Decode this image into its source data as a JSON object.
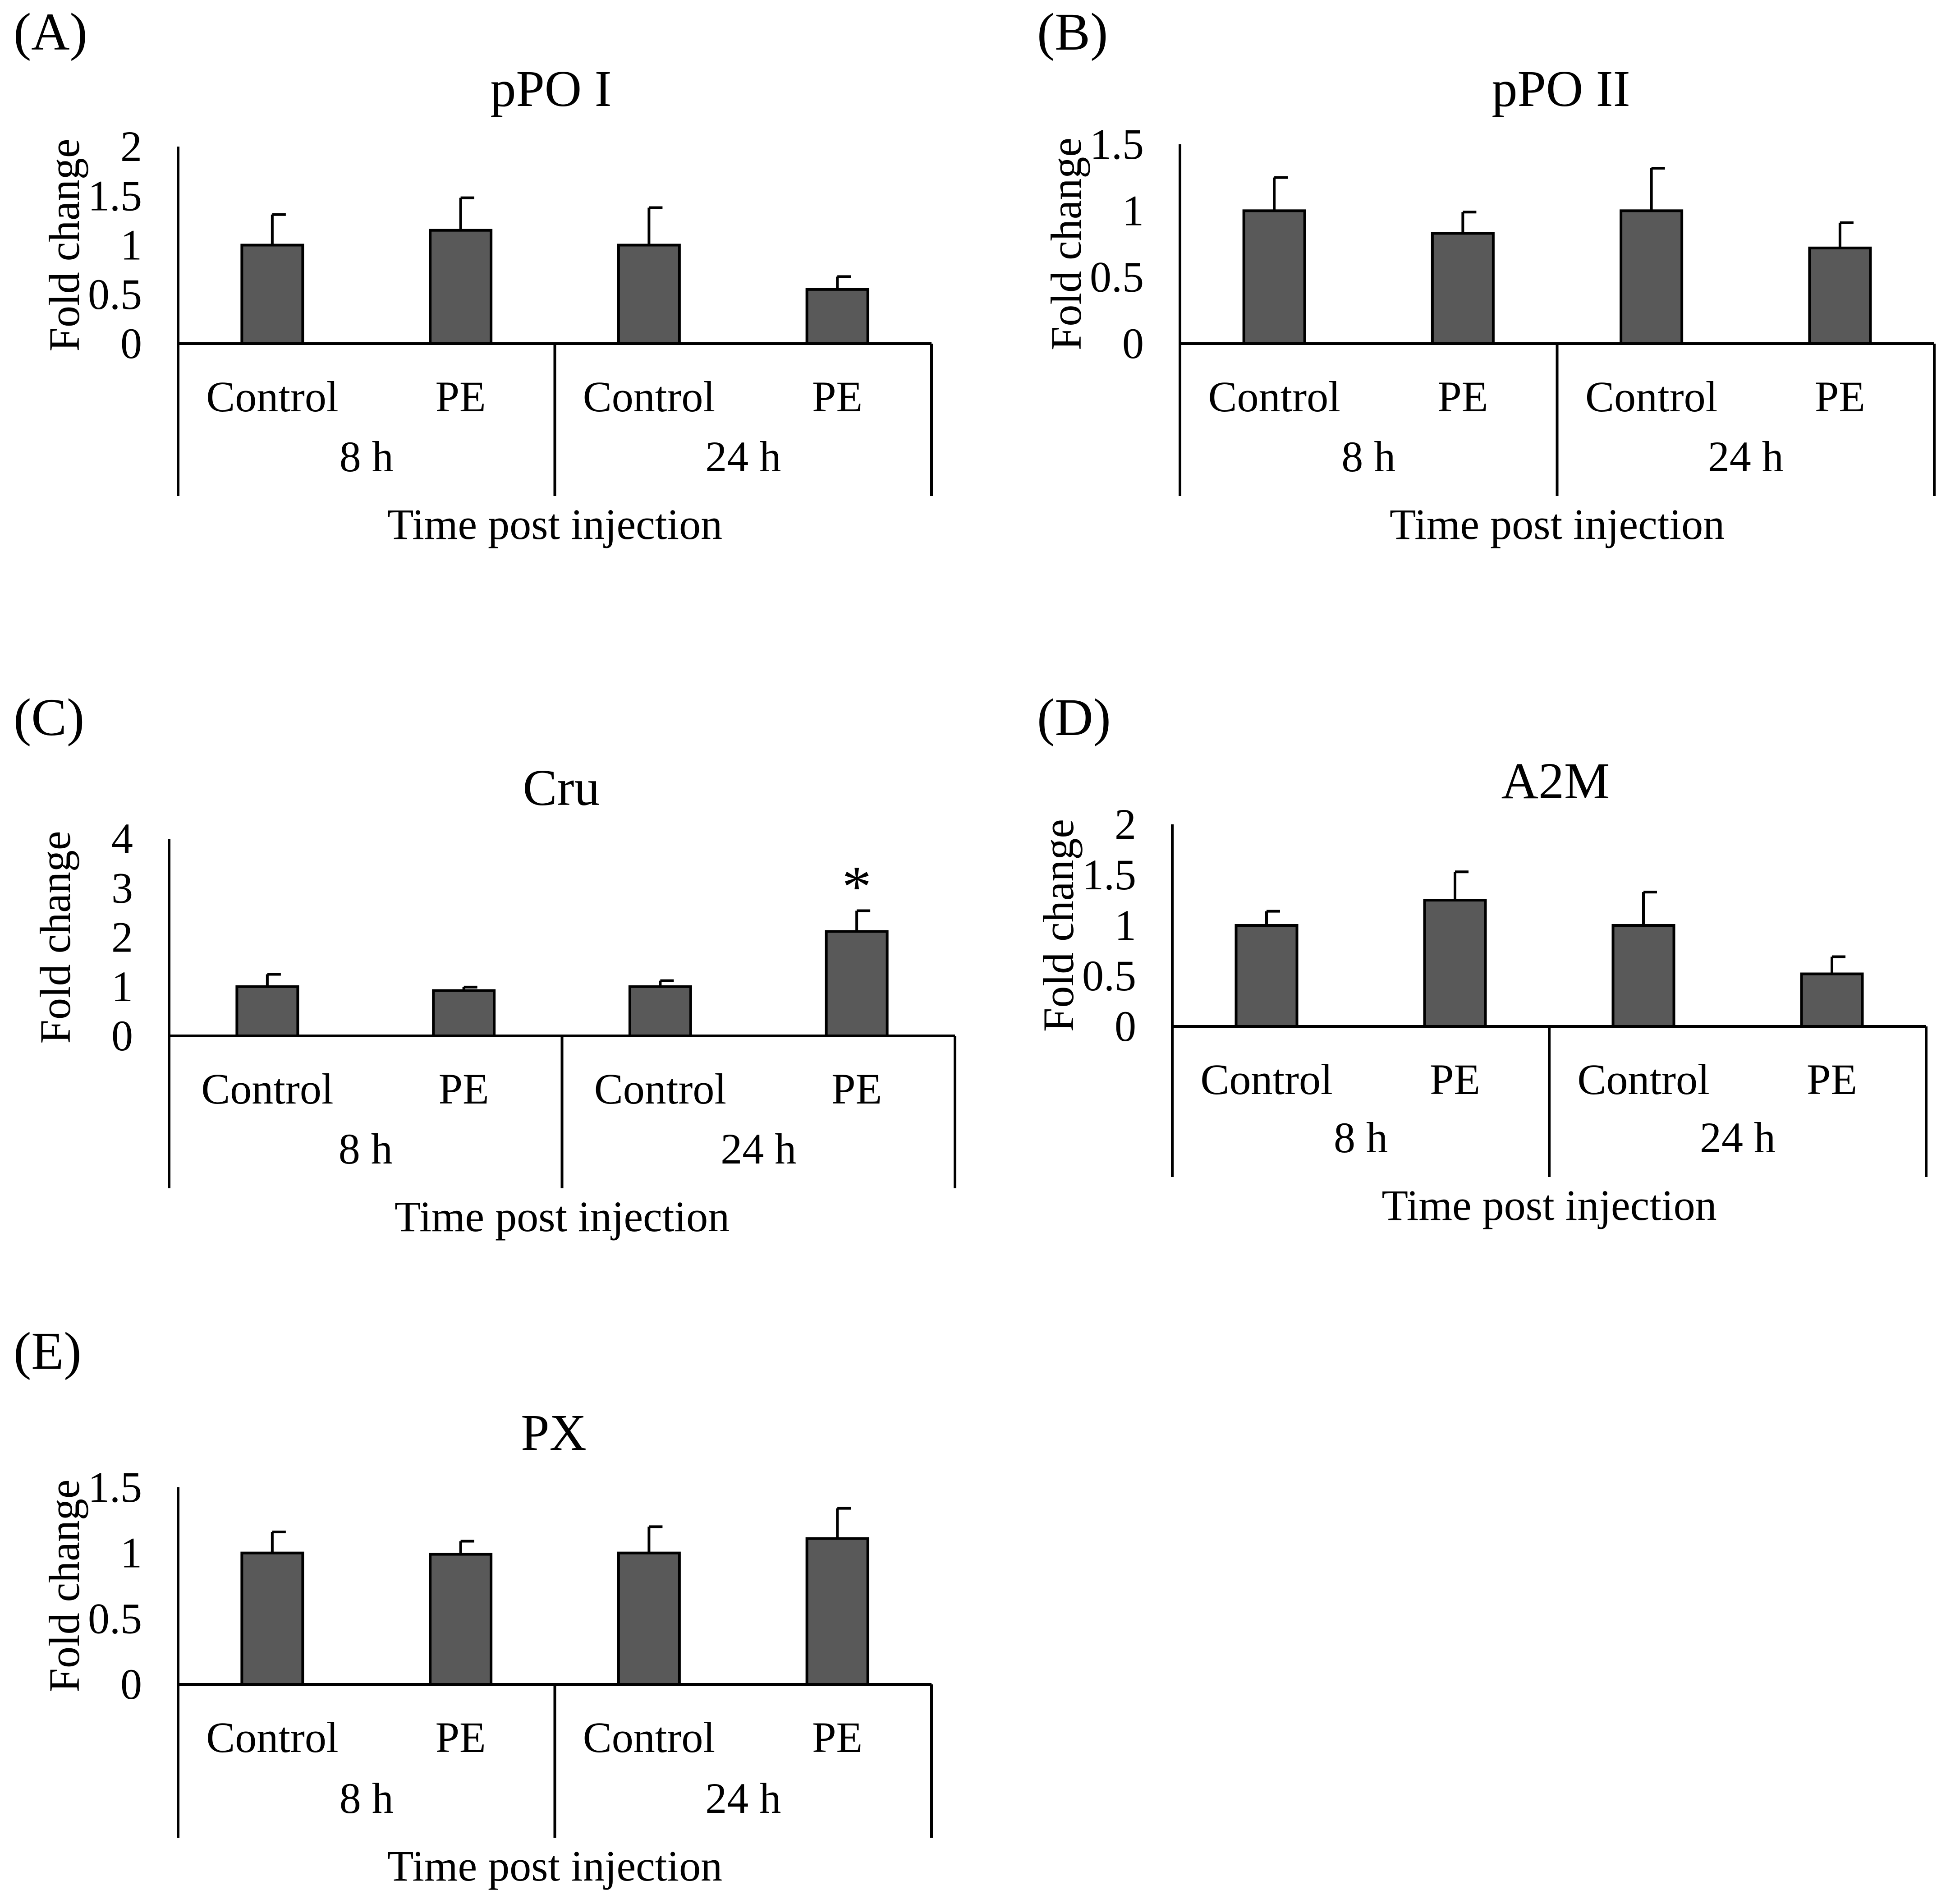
{
  "figure": {
    "chart_data": [
      {
        "panel": "(A)",
        "type": "bar",
        "title": "pPO I",
        "ylabel": "Fold change",
        "xlabel": "Time post injection",
        "ylim": [
          0,
          2
        ],
        "yticks": [
          "0",
          "0.5",
          "1",
          "1.5",
          "2"
        ],
        "ytick_values": [
          0,
          0.5,
          1,
          1.5,
          2
        ],
        "categories": [
          "Control",
          "PE",
          "Control",
          "PE"
        ],
        "groups": [
          "8 h",
          "24 h"
        ],
        "values": [
          1.0,
          1.15,
          1.0,
          0.55
        ],
        "errors": [
          0.31,
          0.33,
          0.38,
          0.13
        ],
        "significance": [
          "",
          "",
          "",
          ""
        ]
      },
      {
        "panel": "(B)",
        "type": "bar",
        "title": "pPO II",
        "ylabel": "Fold change",
        "xlabel": "Time post injection",
        "ylim": [
          0,
          1.5
        ],
        "yticks": [
          "0",
          "0.5",
          "1",
          "1.5"
        ],
        "ytick_values": [
          0,
          0.5,
          1,
          1.5
        ],
        "categories": [
          "Control",
          "PE",
          "Control",
          "PE"
        ],
        "groups": [
          "8 h",
          "24 h"
        ],
        "values": [
          1.0,
          0.83,
          1.0,
          0.72
        ],
        "errors": [
          0.25,
          0.16,
          0.32,
          0.19
        ],
        "significance": [
          "",
          "",
          "",
          ""
        ]
      },
      {
        "panel": "(C)",
        "type": "bar",
        "title": "Cru",
        "ylabel": "Fold change",
        "xlabel": "Time post injection",
        "ylim": [
          0,
          4
        ],
        "yticks": [
          "0",
          "1",
          "2",
          "3",
          "4"
        ],
        "ytick_values": [
          0,
          1,
          2,
          3,
          4
        ],
        "categories": [
          "Control",
          "PE",
          "Control",
          "PE"
        ],
        "groups": [
          "8 h",
          "24 h"
        ],
        "values": [
          1.0,
          0.92,
          1.0,
          2.12
        ],
        "errors": [
          0.25,
          0.07,
          0.12,
          0.42
        ],
        "significance": [
          "",
          "",
          "",
          "*"
        ]
      },
      {
        "panel": "(D)",
        "type": "bar",
        "title": "A2M",
        "ylabel": "Fold change",
        "xlabel": "Time post injection",
        "ylim": [
          0,
          2
        ],
        "yticks": [
          "0",
          "0.5",
          "1",
          "1.5",
          "2"
        ],
        "ytick_values": [
          0,
          0.5,
          1,
          1.5,
          2
        ],
        "categories": [
          "Control",
          "PE",
          "Control",
          "PE"
        ],
        "groups": [
          "8 h",
          "24 h"
        ],
        "values": [
          1.0,
          1.25,
          1.0,
          0.52
        ],
        "errors": [
          0.14,
          0.28,
          0.33,
          0.17
        ],
        "significance": [
          "",
          "",
          "",
          ""
        ]
      },
      {
        "panel": "(E)",
        "type": "bar",
        "title": "PX",
        "ylabel": "Fold change",
        "xlabel": "Time post injection",
        "ylim": [
          0,
          1.5
        ],
        "yticks": [
          "0",
          "0.5",
          "1",
          "1.5"
        ],
        "ytick_values": [
          0,
          0.5,
          1,
          1.5
        ],
        "categories": [
          "Control",
          "PE",
          "Control",
          "PE"
        ],
        "groups": [
          "8 h",
          "24 h"
        ],
        "values": [
          1.0,
          0.99,
          1.0,
          1.11
        ],
        "errors": [
          0.16,
          0.1,
          0.2,
          0.23
        ],
        "significance": [
          "",
          "",
          "",
          ""
        ]
      }
    ],
    "colors": {
      "bar_fill": "#595959",
      "line": "#000000"
    }
  }
}
